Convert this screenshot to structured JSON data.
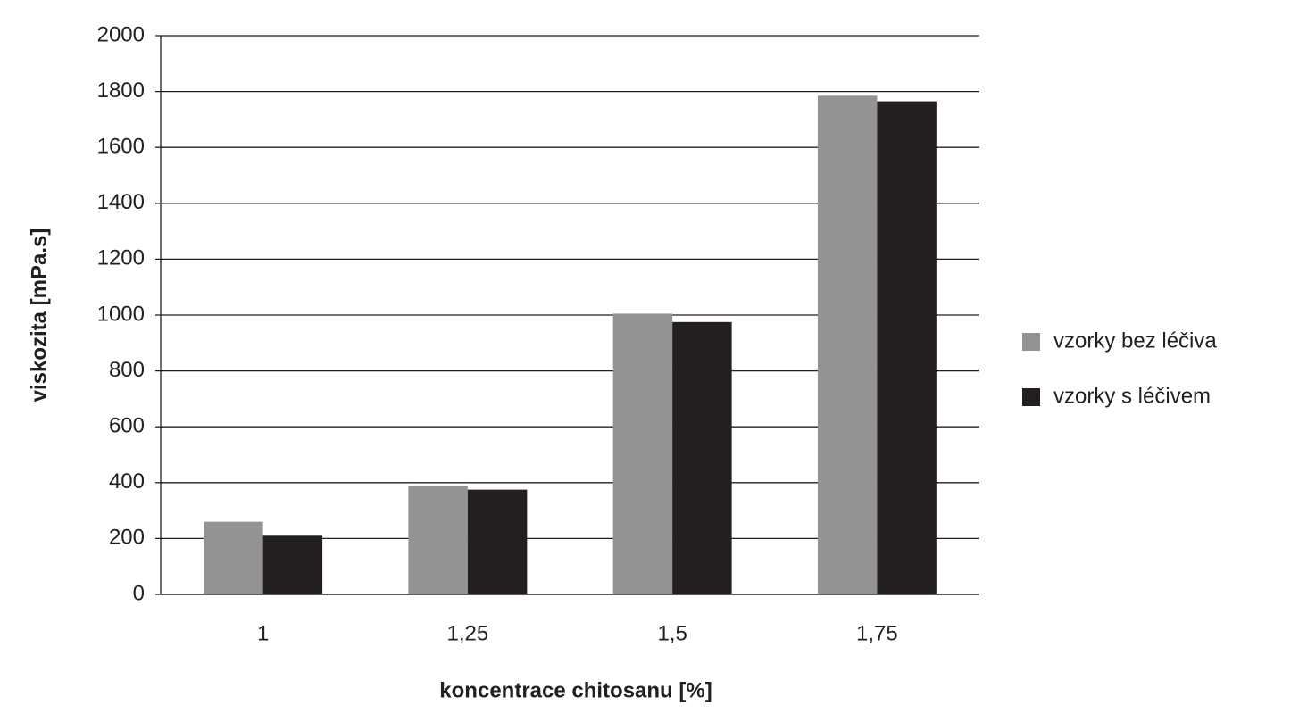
{
  "chart_data": {
    "type": "bar",
    "x_label": "koncentrace chitosanu [%]",
    "y_label": "viskozita [mPa.s]",
    "categories": [
      "1",
      "1,25",
      "1,5",
      "1,75"
    ],
    "series": [
      {
        "name": "vzorky bez léčiva",
        "color": "#939393",
        "values": [
          260,
          390,
          1005,
          1785
        ]
      },
      {
        "name": "vzorky s léčivem",
        "color": "#231f20",
        "values": [
          210,
          375,
          975,
          1765
        ]
      }
    ],
    "ylim": [
      0,
      2000
    ],
    "yticks": [
      0,
      200,
      400,
      600,
      800,
      1000,
      1200,
      1400,
      1600,
      1800,
      2000
    ],
    "grid": true,
    "legend": "right"
  }
}
